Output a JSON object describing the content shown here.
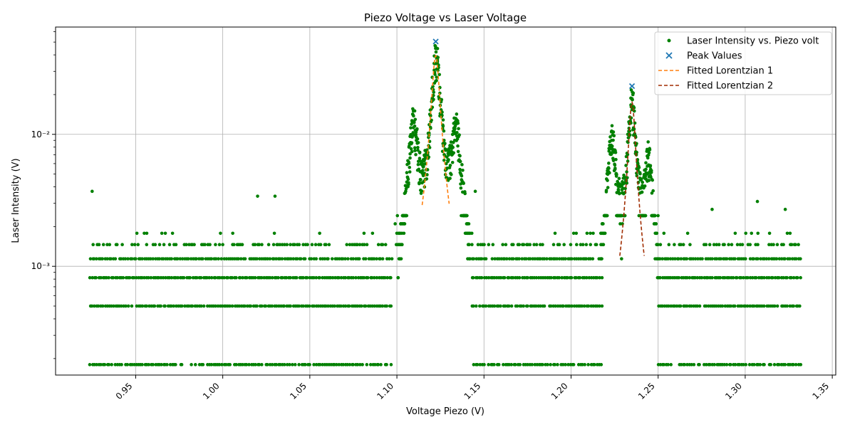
{
  "chart_data": {
    "type": "scatter",
    "title": "Piezo Voltage vs Laser Voltage",
    "xlabel": "Voltage Piezo (V)",
    "ylabel": "Laser Intensity (V)",
    "xlim": [
      0.904,
      1.352
    ],
    "ylim": [
      0.00015,
      0.065
    ],
    "yscale": "log",
    "grid": true,
    "legend_position": "top-right",
    "x_ticks": [
      {
        "value": 0.95,
        "label": "0.95"
      },
      {
        "value": 1.0,
        "label": "1.00"
      },
      {
        "value": 1.05,
        "label": "1.05"
      },
      {
        "value": 1.1,
        "label": "1.10"
      },
      {
        "value": 1.15,
        "label": "1.15"
      },
      {
        "value": 1.2,
        "label": "1.20"
      },
      {
        "value": 1.25,
        "label": "1.25"
      },
      {
        "value": 1.3,
        "label": "1.30"
      },
      {
        "value": 1.35,
        "label": "1.35"
      }
    ],
    "y_ticks": [
      {
        "value": 0.001,
        "label": "10⁻³"
      },
      {
        "value": 0.01,
        "label": "10⁻²"
      }
    ],
    "quantization_levels": [
      0.00018,
      0.0005,
      0.00082,
      0.00114,
      0.00146,
      0.00178,
      0.0021,
      0.00242
    ],
    "scatter_x_range": [
      0.924,
      1.332
    ],
    "series": [
      {
        "name": "Laser Intensity vs. Piezo volt",
        "kind": "scatter",
        "color": "#008000",
        "baseline_bands": [
          {
            "x_range": [
              0.924,
              1.098
            ],
            "levels": [
              0.00018,
              0.0005,
              0.00082,
              0.00114,
              0.00146,
              0.00178
            ]
          },
          {
            "x_range": [
              1.143,
              1.218
            ],
            "levels": [
              0.00018,
              0.0005,
              0.00082,
              0.00114,
              0.00146,
              0.00178
            ]
          },
          {
            "x_range": [
              1.25,
              1.332
            ],
            "levels": [
              0.00018,
              0.0005,
              0.00082,
              0.00114,
              0.00146,
              0.00178
            ]
          }
        ],
        "peaks": [
          {
            "center": 1.1095,
            "height": 0.0135,
            "width": 0.0025
          },
          {
            "center": 1.1225,
            "height": 0.045,
            "width": 0.0022
          },
          {
            "center": 1.134,
            "height": 0.0125,
            "width": 0.0025
          },
          {
            "center": 1.2235,
            "height": 0.01,
            "width": 0.0025
          },
          {
            "center": 1.235,
            "height": 0.02,
            "width": 0.002
          },
          {
            "center": 1.2445,
            "height": 0.0072,
            "width": 0.0022
          }
        ],
        "outliers": [
          {
            "x": 0.925,
            "y": 0.0037
          },
          {
            "x": 1.02,
            "y": 0.0034
          },
          {
            "x": 1.03,
            "y": 0.0034
          },
          {
            "x": 1.307,
            "y": 0.0031
          },
          {
            "x": 1.281,
            "y": 0.0027
          },
          {
            "x": 1.323,
            "y": 0.0027
          },
          {
            "x": 1.145,
            "y": 0.0037
          },
          {
            "x": 1.229,
            "y": 0.00114
          }
        ]
      },
      {
        "name": "Peak Values",
        "kind": "marker-x",
        "color": "#1f77b4",
        "points": [
          {
            "x": 1.1223,
            "y": 0.0505
          },
          {
            "x": 1.235,
            "y": 0.0232
          }
        ]
      },
      {
        "name": "Fitted Lorentzian 1",
        "kind": "dashed-line",
        "color": "#ff7f0e",
        "center": 1.1223,
        "amplitude": 0.0395,
        "gamma": 0.0022,
        "x_range": [
          1.1145,
          1.13
        ]
      },
      {
        "name": "Fitted Lorentzian 2",
        "kind": "dashed-line",
        "color": "#a02c00",
        "center": 1.235,
        "amplitude": 0.0175,
        "gamma": 0.0019,
        "x_range": [
          1.228,
          1.242
        ]
      }
    ]
  }
}
